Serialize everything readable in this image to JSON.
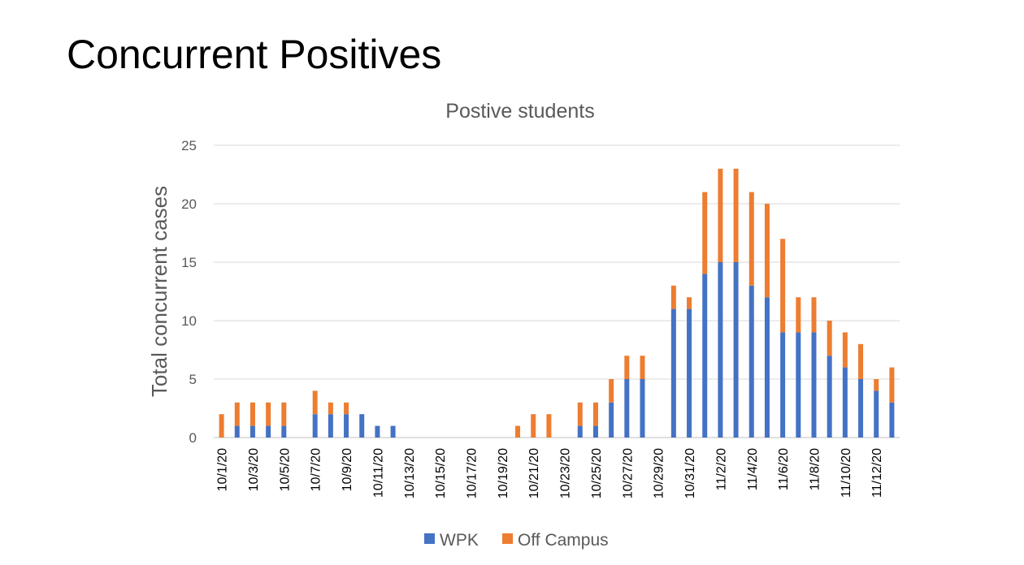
{
  "slide": {
    "title": "Concurrent Positives"
  },
  "chart_data": {
    "type": "bar",
    "stacked": true,
    "title": "Postive students",
    "xlabel": "",
    "ylabel": "Total concurrent cases",
    "ylim": [
      0,
      25
    ],
    "yticks": [
      0,
      5,
      10,
      15,
      20,
      25
    ],
    "categories": [
      "10/1/20",
      "10/2/20",
      "10/3/20",
      "10/4/20",
      "10/5/20",
      "10/6/20",
      "10/7/20",
      "10/8/20",
      "10/9/20",
      "10/10/20",
      "10/11/20",
      "10/12/20",
      "10/13/20",
      "10/14/20",
      "10/15/20",
      "10/16/20",
      "10/17/20",
      "10/18/20",
      "10/19/20",
      "10/20/20",
      "10/21/20",
      "10/22/20",
      "10/23/20",
      "10/24/20",
      "10/25/20",
      "10/26/20",
      "10/27/20",
      "10/28/20",
      "10/29/20",
      "10/30/20",
      "10/31/20",
      "11/1/20",
      "11/2/20",
      "11/3/20",
      "11/4/20",
      "11/5/20",
      "11/6/20",
      "11/7/20",
      "11/8/20",
      "11/9/20",
      "11/10/20",
      "11/11/20",
      "11/12/20",
      "11/13/20"
    ],
    "visible_tick_labels": [
      "10/1/20",
      "10/3/20",
      "10/5/20",
      "10/7/20",
      "10/9/20",
      "10/11/20",
      "10/13/20",
      "10/15/20",
      "10/17/20",
      "10/19/20",
      "10/21/20",
      "10/23/20",
      "10/25/20",
      "10/27/20",
      "10/29/20",
      "10/31/20",
      "11/2/20",
      "11/4/20",
      "11/6/20",
      "11/8/20",
      "11/10/20",
      "11/12/20"
    ],
    "series": [
      {
        "name": "WPK",
        "color": "#4472c4",
        "values": [
          0,
          1,
          1,
          1,
          1,
          0,
          2,
          2,
          2,
          2,
          1,
          1,
          0,
          0,
          0,
          0,
          0,
          0,
          0,
          0,
          0,
          0,
          0,
          1,
          1,
          3,
          5,
          5,
          0,
          11,
          11,
          14,
          15,
          15,
          13,
          12,
          9,
          9,
          9,
          7,
          6,
          5,
          4,
          3
        ]
      },
      {
        "name": "Off Campus",
        "color": "#ed7d31",
        "values": [
          2,
          2,
          2,
          2,
          2,
          0,
          2,
          1,
          1,
          0,
          0,
          0,
          0,
          0,
          0,
          0,
          0,
          0,
          0,
          1,
          2,
          2,
          0,
          2,
          2,
          2,
          2,
          2,
          0,
          2,
          1,
          7,
          8,
          8,
          8,
          8,
          8,
          3,
          3,
          3,
          3,
          3,
          1,
          3
        ]
      }
    ],
    "legend_position": "bottom"
  }
}
